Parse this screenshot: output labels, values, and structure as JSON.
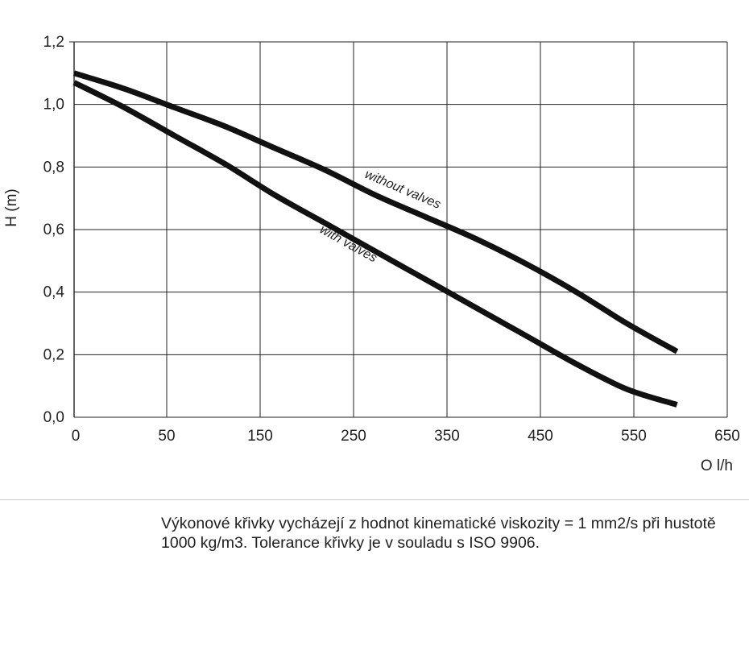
{
  "chart_data": {
    "type": "line",
    "xlabel": "O l/h",
    "ylabel": "H (m)",
    "xlim": [
      0,
      650
    ],
    "ylim": [
      0,
      1.2
    ],
    "x_ticks": [
      "0",
      "50",
      "150",
      "250",
      "350",
      "450",
      "550",
      "650"
    ],
    "y_ticks": [
      "0,0",
      "0,2",
      "0,4",
      "0,6",
      "0,8",
      "1,0",
      "1,2"
    ],
    "grid": true,
    "series": [
      {
        "name": "without valves",
        "x": [
          0,
          50,
          100,
          150,
          200,
          250,
          300,
          350,
          400,
          450,
          500,
          550,
          600
        ],
        "y": [
          1.1,
          1.05,
          0.99,
          0.93,
          0.86,
          0.79,
          0.71,
          0.64,
          0.57,
          0.49,
          0.4,
          0.3,
          0.21
        ]
      },
      {
        "name": "with valves",
        "x": [
          0,
          50,
          100,
          150,
          200,
          250,
          300,
          350,
          400,
          450,
          500,
          550,
          600
        ],
        "y": [
          1.07,
          0.99,
          0.9,
          0.81,
          0.71,
          0.62,
          0.53,
          0.44,
          0.35,
          0.26,
          0.17,
          0.09,
          0.04
        ]
      }
    ]
  },
  "note": {
    "line1": "Výkonové křivky vycházejí z hodnot kinematické viskozity = 1 mm2/s při hustotě",
    "line2": "1000 kg/m3. Tolerance křivky je v souladu s ISO 9906."
  }
}
